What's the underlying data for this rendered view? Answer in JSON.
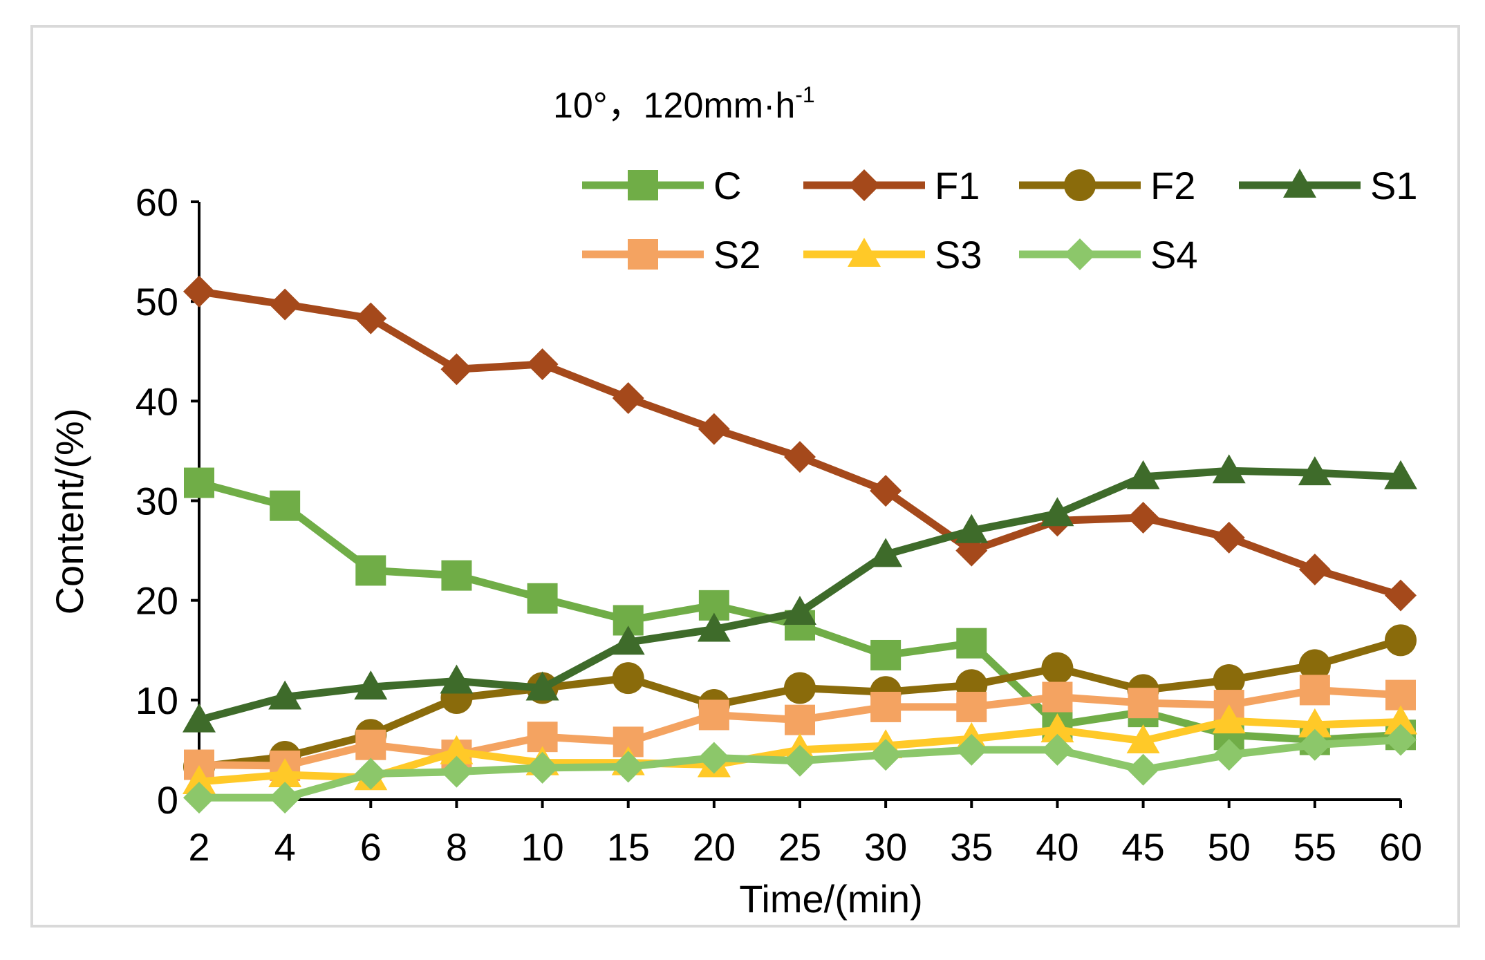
{
  "chart_data": {
    "type": "line",
    "title": "10°，120mm·h",
    "title_superscript": "-1",
    "xlabel": "Time/(min)",
    "ylabel": "Content/(%)",
    "categories": [
      "2",
      "4",
      "6",
      "8",
      "10",
      "15",
      "20",
      "25",
      "30",
      "35",
      "40",
      "45",
      "50",
      "55",
      "60"
    ],
    "ylim": [
      0,
      60
    ],
    "yticks": [
      0,
      10,
      20,
      30,
      40,
      50,
      60
    ],
    "grid": false,
    "legend": "top-right",
    "series": [
      {
        "name": "C",
        "color": "#70ad47",
        "marker": "square",
        "values": [
          31.8,
          29.5,
          23.0,
          22.5,
          20.2,
          18.0,
          19.5,
          17.5,
          14.5,
          15.7,
          7.5,
          8.8,
          6.5,
          6.0,
          6.5
        ]
      },
      {
        "name": "F1",
        "color": "#a5491b",
        "marker": "diamond",
        "values": [
          51.0,
          49.7,
          48.3,
          43.2,
          43.7,
          40.3,
          37.2,
          34.4,
          31.0,
          25.0,
          28.0,
          28.3,
          26.3,
          23.1,
          20.5
        ]
      },
      {
        "name": "F2",
        "color": "#8a6b0b",
        "marker": "circle",
        "values": [
          3.3,
          4.3,
          6.5,
          10.2,
          11.2,
          12.2,
          9.5,
          11.2,
          10.8,
          11.5,
          13.2,
          11.0,
          12.0,
          13.5,
          16.0
        ]
      },
      {
        "name": "S1",
        "color": "#3e6b2a",
        "marker": "triangle",
        "values": [
          8.0,
          10.3,
          11.3,
          11.9,
          11.2,
          15.8,
          17.1,
          18.8,
          24.6,
          27.0,
          28.7,
          32.4,
          33.0,
          32.8,
          32.4
        ]
      },
      {
        "name": "S2",
        "color": "#f4a361",
        "marker": "square",
        "values": [
          3.5,
          3.4,
          5.5,
          4.5,
          6.3,
          5.8,
          8.5,
          8.0,
          9.3,
          9.3,
          10.3,
          9.7,
          9.5,
          11.0,
          10.5
        ]
      },
      {
        "name": "S3",
        "color": "#ffc928",
        "marker": "triangle",
        "values": [
          1.8,
          2.5,
          2.2,
          4.8,
          3.7,
          3.7,
          3.5,
          5.0,
          5.4,
          6.1,
          7.0,
          5.9,
          7.9,
          7.5,
          7.8
        ]
      },
      {
        "name": "S4",
        "color": "#8cc76a",
        "marker": "diamond",
        "values": [
          0.2,
          0.2,
          2.6,
          2.8,
          3.2,
          3.3,
          4.2,
          3.9,
          4.5,
          5.0,
          5.0,
          3.0,
          4.5,
          5.5,
          6.0
        ]
      }
    ]
  }
}
